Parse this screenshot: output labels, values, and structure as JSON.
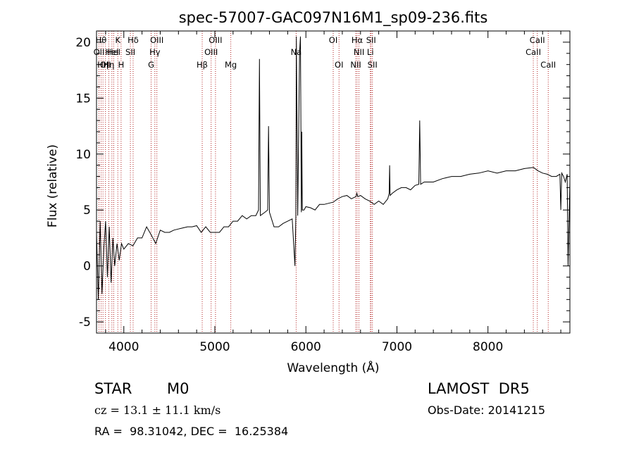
{
  "chart_data": {
    "type": "line",
    "title": "spec-57007-GAC097N16M1_sp09-236.fits",
    "xlabel": "Wavelength (Å)",
    "ylabel": "Flux (relative)",
    "xlim": [
      3700,
      8900
    ],
    "ylim": [
      -6,
      21
    ],
    "xticks": [
      4000,
      5000,
      6000,
      7000,
      8000
    ],
    "yticks": [
      -5,
      0,
      5,
      10,
      15,
      20
    ],
    "grid": false,
    "series": [
      {
        "color": "#000000",
        "x": [
          3700,
          3720,
          3740,
          3760,
          3780,
          3800,
          3820,
          3840,
          3860,
          3880,
          3900,
          3925,
          3950,
          3975,
          4000,
          4050,
          4100,
          4150,
          4200,
          4250,
          4300,
          4350,
          4400,
          4450,
          4500,
          4550,
          4600,
          4650,
          4700,
          4750,
          4800,
          4850,
          4900,
          4950,
          5000,
          5050,
          5100,
          5150,
          5200,
          5250,
          5300,
          5350,
          5400,
          5450,
          5480,
          5490,
          5500,
          5550,
          5580,
          5590,
          5600,
          5650,
          5700,
          5750,
          5800,
          5850,
          5880,
          5890,
          5895,
          5910,
          5930,
          5940,
          5950,
          5955,
          5960,
          5980,
          6000,
          6050,
          6100,
          6150,
          6200,
          6250,
          6300,
          6350,
          6400,
          6450,
          6500,
          6550,
          6560,
          6570,
          6600,
          6650,
          6700,
          6750,
          6800,
          6850,
          6900,
          6915,
          6920,
          6925,
          6950,
          7000,
          7050,
          7100,
          7150,
          7200,
          7240,
          7250,
          7260,
          7300,
          7400,
          7500,
          7600,
          7700,
          7800,
          7900,
          8000,
          8100,
          8200,
          8300,
          8400,
          8500,
          8550,
          8600,
          8650,
          8700,
          8750,
          8790,
          8800,
          8810,
          8830,
          8850,
          8870,
          8880,
          8900
        ],
        "y": [
          3.0,
          -3.0,
          4.0,
          -2.5,
          1.5,
          4.0,
          -1.0,
          3.5,
          -1.5,
          2.5,
          0.0,
          2.0,
          0.5,
          2.0,
          1.5,
          2.0,
          1.8,
          2.5,
          2.5,
          3.5,
          2.8,
          2.0,
          3.2,
          3.0,
          3.0,
          3.2,
          3.3,
          3.4,
          3.5,
          3.5,
          3.6,
          3.0,
          3.5,
          3.0,
          3.0,
          3.0,
          3.5,
          3.5,
          4.0,
          4.0,
          4.5,
          4.2,
          4.5,
          4.5,
          5.0,
          18.5,
          4.5,
          4.8,
          5.0,
          12.5,
          4.8,
          3.5,
          3.5,
          3.8,
          4.0,
          4.2,
          0.0,
          4.5,
          20.5,
          4.5,
          19.0,
          20.5,
          4.8,
          12.0,
          5.0,
          5.0,
          5.3,
          5.2,
          5.0,
          5.5,
          5.5,
          5.6,
          5.7,
          6.0,
          6.2,
          6.3,
          6.0,
          6.2,
          6.5,
          6.2,
          6.3,
          6.0,
          5.8,
          5.5,
          5.8,
          5.5,
          6.0,
          6.5,
          9.0,
          6.3,
          6.5,
          6.8,
          7.0,
          7.0,
          6.8,
          7.2,
          7.3,
          13.0,
          7.3,
          7.5,
          7.5,
          7.8,
          8.0,
          8.0,
          8.2,
          8.3,
          8.5,
          8.3,
          8.5,
          8.5,
          8.7,
          8.8,
          8.5,
          8.3,
          8.2,
          8.0,
          8.0,
          8.2,
          5.0,
          8.3,
          8.0,
          7.5,
          8.2,
          0.0,
          7.5
        ]
      }
    ],
    "lines": [
      {
        "wave": 3727,
        "label": "OII",
        "row": 1
      },
      {
        "wave": 3750,
        "label": "Hθ",
        "row": 0
      },
      {
        "wave": 3771,
        "label": "Hη",
        "row": 2
      },
      {
        "wave": 3798,
        "label": "OII",
        "row": 2
      },
      {
        "wave": 3835,
        "label": "Hη",
        "row": 2
      },
      {
        "wave": 3869,
        "label": "HeI",
        "row": 1
      },
      {
        "wave": 3889,
        "label": "HeI",
        "row": 1
      },
      {
        "wave": 3934,
        "label": "K",
        "row": 0
      },
      {
        "wave": 3970,
        "label": "H",
        "row": 2
      },
      {
        "wave": 4072,
        "label": "SII",
        "row": 1
      },
      {
        "wave": 4102,
        "label": "Hδ",
        "row": 0
      },
      {
        "wave": 4300,
        "label": "G",
        "row": 2
      },
      {
        "wave": 4341,
        "label": "Hγ",
        "row": 1
      },
      {
        "wave": 4363,
        "label": "OIII",
        "row": 0
      },
      {
        "wave": 4861,
        "label": "Hβ",
        "row": 2
      },
      {
        "wave": 4959,
        "label": "OIII",
        "row": 1
      },
      {
        "wave": 5007,
        "label": "OIII",
        "row": 0
      },
      {
        "wave": 5175,
        "label": "Mg",
        "row": 2
      },
      {
        "wave": 5893,
        "label": "Na",
        "row": 1
      },
      {
        "wave": 6300,
        "label": "OI",
        "row": 0
      },
      {
        "wave": 6364,
        "label": "OI",
        "row": 2
      },
      {
        "wave": 6548,
        "label": "NII",
        "row": 2
      },
      {
        "wave": 6563,
        "label": "Hα",
        "row": 0
      },
      {
        "wave": 6583,
        "label": "NII",
        "row": 1
      },
      {
        "wave": 6708,
        "label": "Li",
        "row": 1
      },
      {
        "wave": 6716,
        "label": "SII",
        "row": 0
      },
      {
        "wave": 6731,
        "label": "SII",
        "row": 2
      },
      {
        "wave": 8498,
        "label": "CaII",
        "row": 1
      },
      {
        "wave": 8542,
        "label": "CaII",
        "row": 0
      },
      {
        "wave": 8662,
        "label": "CaII",
        "row": 2
      }
    ]
  },
  "info": {
    "class_label": "STAR",
    "subclass": "M0",
    "survey": "LAMOST  DR5",
    "cz": "cz = 13.1 ± 11.1 km/s",
    "obs_date": "Obs-Date: 20141215",
    "coords": "RA =  98.31042, DEC =  16.25384"
  }
}
